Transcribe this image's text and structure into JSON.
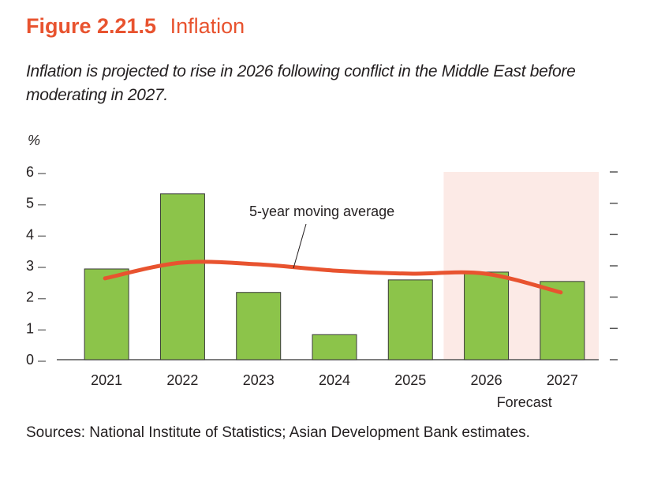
{
  "figure": {
    "number": "Figure 2.21.5",
    "name": "Inflation",
    "subtitle": "Inflation is projected to rise in 2026 following conflict in the Middle East before moderating in 2027.",
    "source": "Sources: National Institute of Statistics; Asian Development Bank estimates."
  },
  "colors": {
    "title": "#E8532F",
    "bar": "#8CC44A",
    "bar_outline": "#3a3a3a",
    "line": "#E8532F",
    "forecast_shade": "#FCEAE6",
    "axis": "#555555"
  },
  "chart_data": {
    "type": "bar",
    "title": "Inflation",
    "ylabel": "%",
    "xlabel": "",
    "ylim": [
      0,
      6
    ],
    "yticks": [
      0,
      1,
      2,
      3,
      4,
      5,
      6
    ],
    "categories": [
      "2021",
      "2022",
      "2023",
      "2024",
      "2025",
      "2026",
      "2027"
    ],
    "series": [
      {
        "name": "Inflation",
        "type": "bar",
        "values": [
          2.9,
          5.3,
          2.15,
          0.8,
          2.55,
          2.8,
          2.5
        ]
      },
      {
        "name": "5-year moving average",
        "type": "line",
        "values": [
          2.6,
          3.1,
          3.05,
          2.85,
          2.75,
          2.75,
          2.15
        ]
      }
    ],
    "forecast": {
      "label": "Forecast",
      "categories": [
        "2026",
        "2027"
      ]
    },
    "annotations": [
      {
        "text": "5-year moving average",
        "target_series": "5-year moving average"
      }
    ],
    "grid": false,
    "legend": "none"
  }
}
